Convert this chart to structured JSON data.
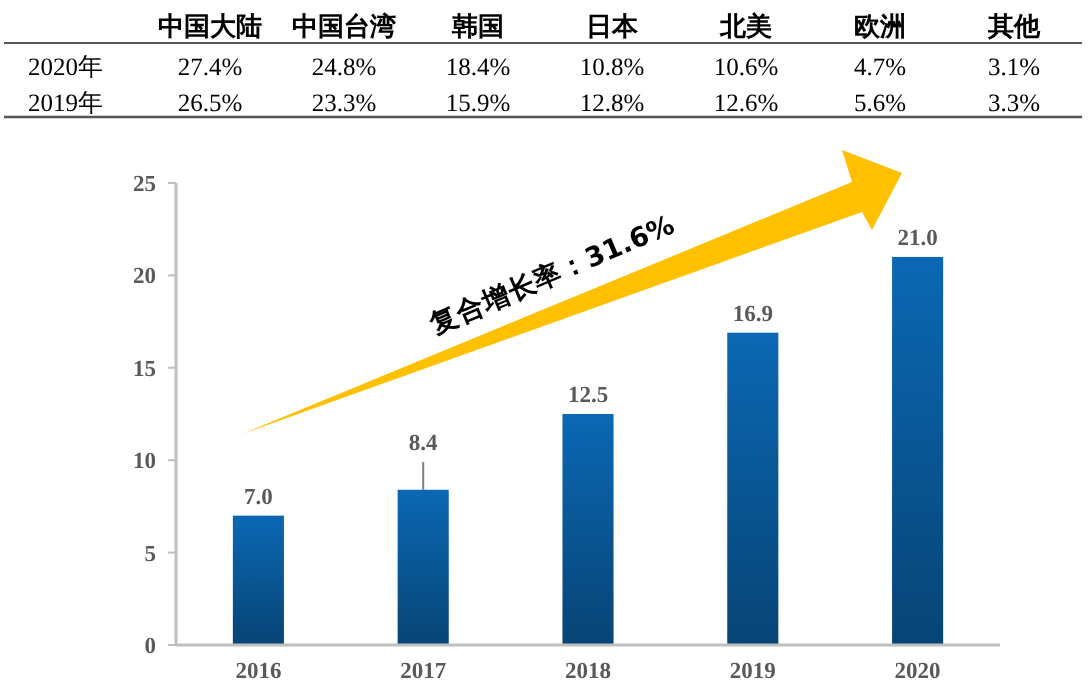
{
  "chart_data": [
    {
      "type": "other",
      "categories": [
        "中国大陆",
        "中国台湾",
        "韩国",
        "日本",
        "北美",
        "欧洲",
        "其他"
      ],
      "series": [
        {
          "name": "2020年",
          "values": [
            27.4,
            24.8,
            18.4,
            10.8,
            10.6,
            4.7,
            3.1
          ],
          "value_labels": [
            "27.4%",
            "24.8%",
            "18.4%",
            "10.8%",
            "10.6%",
            "4.7%",
            "3.1%"
          ]
        },
        {
          "name": "2019年",
          "values": [
            26.5,
            23.3,
            15.9,
            12.8,
            12.6,
            5.6,
            3.3
          ],
          "value_labels": [
            "26.5%",
            "23.3%",
            "15.9%",
            "12.8%",
            "12.6%",
            "5.6%",
            "3.3%"
          ]
        }
      ]
    },
    {
      "type": "bar",
      "categories": [
        "2016",
        "2017",
        "2018",
        "2019",
        "2020"
      ],
      "values": [
        7.0,
        8.4,
        12.5,
        16.9,
        21.0
      ],
      "color": "#0b68b4",
      "errors": [
        null,
        [
          8.4,
          9.9
        ],
        null,
        null,
        null
      ],
      "value_labels": [
        "7.0",
        "8.4",
        "12.5",
        "16.9",
        "21.0"
      ],
      "ylim": [
        0,
        25
      ],
      "yticks": [
        0,
        5,
        10,
        15,
        20,
        25
      ],
      "annotations": [
        "复合增长率：31.6%"
      ]
    }
  ]
}
